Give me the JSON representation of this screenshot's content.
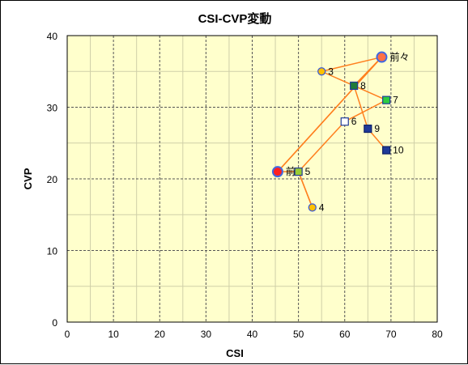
{
  "chart_data": {
    "type": "scatter",
    "title": "CSI-CVP変動",
    "xlabel": "CSI",
    "ylabel": "CVP",
    "xlim": [
      0,
      80
    ],
    "ylim": [
      0,
      40
    ],
    "x_major_ticks": [
      0,
      10,
      20,
      30,
      40,
      50,
      60,
      70,
      80
    ],
    "y_major_ticks": [
      0,
      10,
      20,
      30,
      40
    ],
    "x_minor_step": 5,
    "y_minor_step": 5,
    "grid": true,
    "plot_background": "#ffffcc",
    "line_color": "#ff7f1e",
    "points": [
      {
        "label": "前々",
        "x": 68,
        "y": 37,
        "marker": "circle-large",
        "fill": "#ff7043",
        "stroke": "#4169e1"
      },
      {
        "label": "前",
        "x": 45.5,
        "y": 21,
        "marker": "circle-large",
        "fill": "#ff2020",
        "stroke": "#4169e1"
      },
      {
        "label": "3",
        "x": 55,
        "y": 35,
        "marker": "circle",
        "fill": "#ffc000",
        "stroke": "#3355dd"
      },
      {
        "label": "4",
        "x": 53,
        "y": 16,
        "marker": "circle",
        "fill": "#ffc000",
        "stroke": "#3355dd"
      },
      {
        "label": "5",
        "x": 50,
        "y": 21,
        "marker": "square",
        "fill": "#9acd32",
        "stroke": "#1f3a99"
      },
      {
        "label": "6",
        "x": 60,
        "y": 28,
        "marker": "square",
        "fill": "#ffffff",
        "stroke": "#1f3a99"
      },
      {
        "label": "7",
        "x": 69,
        "y": 31,
        "marker": "square",
        "fill": "#2ecc40",
        "stroke": "#1f3a99"
      },
      {
        "label": "8",
        "x": 62,
        "y": 33,
        "marker": "square",
        "fill": "#1e7b3a",
        "stroke": "#1f3a99"
      },
      {
        "label": "9",
        "x": 65,
        "y": 27,
        "marker": "square",
        "fill": "#1f3a99",
        "stroke": "#0d1f66"
      },
      {
        "label": "10",
        "x": 69,
        "y": 24,
        "marker": "square",
        "fill": "#1f3a99",
        "stroke": "#0d1f66"
      }
    ],
    "path_order": [
      "前",
      "前々",
      "3",
      "8",
      "7",
      "6",
      "5",
      "4",
      "5",
      "前",
      "前々",
      "8",
      "9",
      "10"
    ]
  }
}
